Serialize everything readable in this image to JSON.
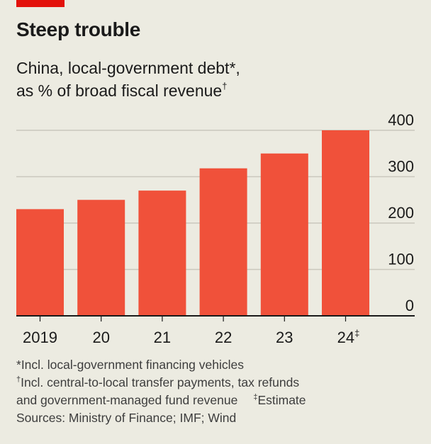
{
  "header": {
    "title": "Steep trouble",
    "subtitle_line1": "China, local-government debt*,",
    "subtitle_line2": "as % of broad fiscal revenue",
    "subtitle_mark": "†"
  },
  "notes": {
    "note1_mark": "*",
    "note1": "Incl. local-government financing vehicles",
    "note2_mark": "†",
    "note2_line1": "Incl. central-to-local transfer payments, tax refunds",
    "note2_line2": "and government-managed fund revenue",
    "note3_mark": "‡",
    "note3": "Estimate",
    "sources": "Sources: Ministry of Finance; IMF; Wind"
  },
  "colors": {
    "bar": "#f0513a",
    "accent": "#e3120b",
    "background": "#ecebe1",
    "gridline": "#c9c8bd",
    "axis": "#1a1a1a"
  },
  "chart_data": {
    "type": "bar",
    "title": "Steep trouble",
    "subtitle": "China, local-government debt*, as % of broad fiscal revenue†",
    "categories": [
      "2019",
      "20",
      "21",
      "22",
      "23",
      "24‡"
    ],
    "values": [
      230,
      250,
      270,
      318,
      350,
      400
    ],
    "xlabel": "",
    "ylabel": "% of broad fiscal revenue",
    "ylim": [
      0,
      400
    ],
    "yticks": [
      0,
      100,
      200,
      300,
      400
    ],
    "ytick_side": "right",
    "grid": true,
    "legend": "none"
  }
}
